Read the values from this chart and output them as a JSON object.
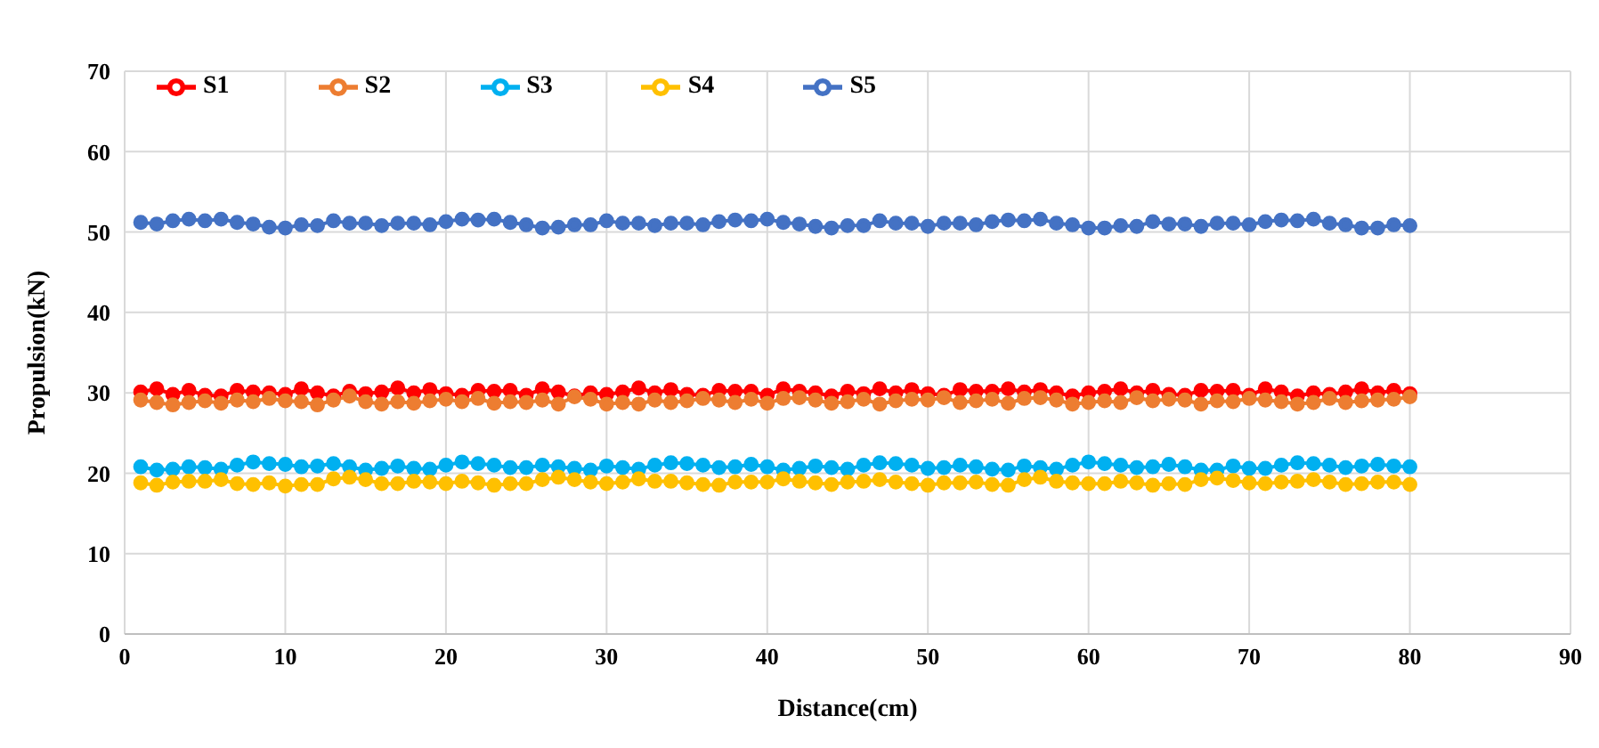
{
  "chart_data": {
    "type": "line",
    "xlabel": "Distance(cm)",
    "ylabel": "Propulsion(kN)",
    "x": [
      1,
      2,
      3,
      4,
      5,
      6,
      7,
      8,
      9,
      10,
      11,
      12,
      13,
      14,
      15,
      16,
      17,
      18,
      19,
      20,
      21,
      22,
      23,
      24,
      25,
      26,
      27,
      28,
      29,
      30,
      31,
      32,
      33,
      34,
      35,
      36,
      37,
      38,
      39,
      40,
      41,
      42,
      43,
      44,
      45,
      46,
      47,
      48,
      49,
      50,
      51,
      52,
      53,
      54,
      55,
      56,
      57,
      58,
      59,
      60,
      61,
      62,
      63,
      64,
      65,
      66,
      67,
      68,
      69,
      70,
      71,
      72,
      73,
      74,
      75,
      76,
      77,
      78,
      79,
      80
    ],
    "xlim": [
      0,
      90
    ],
    "xticks": [
      0,
      10,
      20,
      30,
      40,
      50,
      60,
      70,
      80,
      90
    ],
    "ylim": [
      0,
      70
    ],
    "yticks": [
      0,
      10,
      20,
      30,
      40,
      50,
      60,
      70
    ],
    "grid": true,
    "legend": "top left",
    "marker": "circle",
    "line_style": "solid",
    "series": [
      {
        "name": "S1",
        "color": "#ff0000",
        "values": [
          30.1,
          30.5,
          29.8,
          30.3,
          29.7,
          29.6,
          30.3,
          30.1,
          30.0,
          29.8,
          30.5,
          30.0,
          29.6,
          30.2,
          29.9,
          30.1,
          30.6,
          30.0,
          30.4,
          29.9,
          29.7,
          30.3,
          30.2,
          30.3,
          29.7,
          30.5,
          30.1,
          29.6,
          30.0,
          29.8,
          30.1,
          30.6,
          30.0,
          30.4,
          29.8,
          29.7,
          30.3,
          30.2,
          30.2,
          29.7,
          30.5,
          30.2,
          30.0,
          29.6,
          30.2,
          29.9,
          30.5,
          30.0,
          30.4,
          29.9,
          29.7,
          30.4,
          30.2,
          30.2,
          30.5,
          30.1,
          30.4,
          30.0,
          29.6,
          30.0,
          30.2,
          30.5,
          30.0,
          30.3,
          29.8,
          29.7,
          30.3,
          30.2,
          30.3,
          29.7,
          30.5,
          30.1,
          29.6,
          30.0,
          29.8,
          30.1,
          30.5,
          30.0,
          30.3,
          29.9
        ]
      },
      {
        "name": "S2",
        "color": "#ed7d31",
        "values": [
          29.1,
          28.8,
          28.5,
          28.8,
          29.0,
          28.7,
          29.1,
          28.9,
          29.3,
          29.0,
          28.9,
          28.5,
          29.1,
          29.6,
          28.9,
          28.6,
          28.9,
          28.7,
          29.0,
          29.2,
          28.9,
          29.3,
          28.7,
          28.9,
          28.8,
          29.1,
          28.6,
          29.5,
          29.2,
          28.6,
          28.8,
          28.6,
          29.1,
          28.8,
          29.0,
          29.3,
          29.1,
          28.8,
          29.2,
          28.7,
          29.3,
          29.4,
          29.1,
          28.7,
          28.9,
          29.2,
          28.6,
          29.0,
          29.2,
          29.1,
          29.4,
          28.8,
          29.0,
          29.2,
          28.7,
          29.3,
          29.4,
          29.1,
          28.6,
          28.8,
          29.0,
          28.8,
          29.4,
          29.0,
          29.2,
          29.1,
          28.6,
          29.0,
          28.9,
          29.3,
          29.1,
          28.9,
          28.6,
          28.8,
          29.3,
          28.8,
          29.0,
          29.1,
          29.2,
          29.5
        ]
      },
      {
        "name": "S3",
        "color": "#00b0f0",
        "values": [
          20.8,
          20.4,
          20.5,
          20.8,
          20.7,
          20.5,
          21.0,
          21.4,
          21.2,
          21.1,
          20.8,
          20.9,
          21.2,
          20.8,
          20.4,
          20.6,
          20.9,
          20.6,
          20.5,
          21.0,
          21.4,
          21.2,
          21.0,
          20.7,
          20.7,
          21.0,
          20.8,
          20.6,
          20.4,
          20.9,
          20.7,
          20.5,
          21.0,
          21.3,
          21.2,
          21.0,
          20.7,
          20.8,
          21.1,
          20.8,
          20.4,
          20.6,
          20.9,
          20.7,
          20.5,
          21.0,
          21.3,
          21.2,
          21.0,
          20.6,
          20.7,
          21.0,
          20.8,
          20.5,
          20.4,
          20.9,
          20.7,
          20.5,
          21.0,
          21.4,
          21.2,
          21.0,
          20.7,
          20.8,
          21.1,
          20.8,
          20.4,
          20.4,
          20.9,
          20.6,
          20.6,
          21.0,
          21.3,
          21.2,
          21.0,
          20.7,
          20.9,
          21.1,
          20.9,
          20.8
        ]
      },
      {
        "name": "S4",
        "color": "#ffc000",
        "values": [
          18.8,
          18.5,
          18.9,
          19.0,
          19.0,
          19.2,
          18.7,
          18.6,
          18.8,
          18.4,
          18.6,
          18.6,
          19.3,
          19.5,
          19.2,
          18.7,
          18.7,
          19.0,
          18.9,
          18.7,
          19.0,
          18.8,
          18.5,
          18.7,
          18.7,
          19.2,
          19.5,
          19.2,
          18.9,
          18.7,
          18.9,
          19.3,
          19.0,
          19.0,
          18.8,
          18.6,
          18.5,
          18.9,
          18.9,
          18.9,
          19.3,
          19.0,
          18.8,
          18.6,
          18.9,
          19.0,
          19.2,
          18.9,
          18.7,
          18.5,
          18.8,
          18.8,
          18.9,
          18.6,
          18.5,
          19.2,
          19.5,
          19.0,
          18.8,
          18.7,
          18.7,
          19.0,
          18.8,
          18.5,
          18.7,
          18.6,
          19.2,
          19.4,
          19.1,
          18.8,
          18.7,
          18.9,
          19.0,
          19.2,
          18.9,
          18.6,
          18.7,
          18.9,
          18.9,
          18.6
        ]
      },
      {
        "name": "S5",
        "color": "#4472c4",
        "values": [
          51.2,
          51.0,
          51.4,
          51.6,
          51.4,
          51.6,
          51.2,
          51.0,
          50.6,
          50.5,
          50.9,
          50.8,
          51.4,
          51.1,
          51.1,
          50.8,
          51.1,
          51.1,
          50.9,
          51.3,
          51.6,
          51.5,
          51.6,
          51.2,
          50.9,
          50.5,
          50.6,
          50.9,
          50.9,
          51.4,
          51.1,
          51.1,
          50.8,
          51.1,
          51.1,
          50.9,
          51.3,
          51.5,
          51.4,
          51.6,
          51.2,
          51.0,
          50.7,
          50.5,
          50.8,
          50.8,
          51.4,
          51.1,
          51.1,
          50.7,
          51.1,
          51.1,
          50.9,
          51.3,
          51.5,
          51.4,
          51.6,
          51.1,
          50.9,
          50.5,
          50.5,
          50.8,
          50.7,
          51.3,
          51.0,
          51.0,
          50.7,
          51.1,
          51.1,
          50.9,
          51.3,
          51.5,
          51.4,
          51.6,
          51.1,
          50.9,
          50.5,
          50.5,
          50.9,
          50.8
        ]
      }
    ]
  }
}
